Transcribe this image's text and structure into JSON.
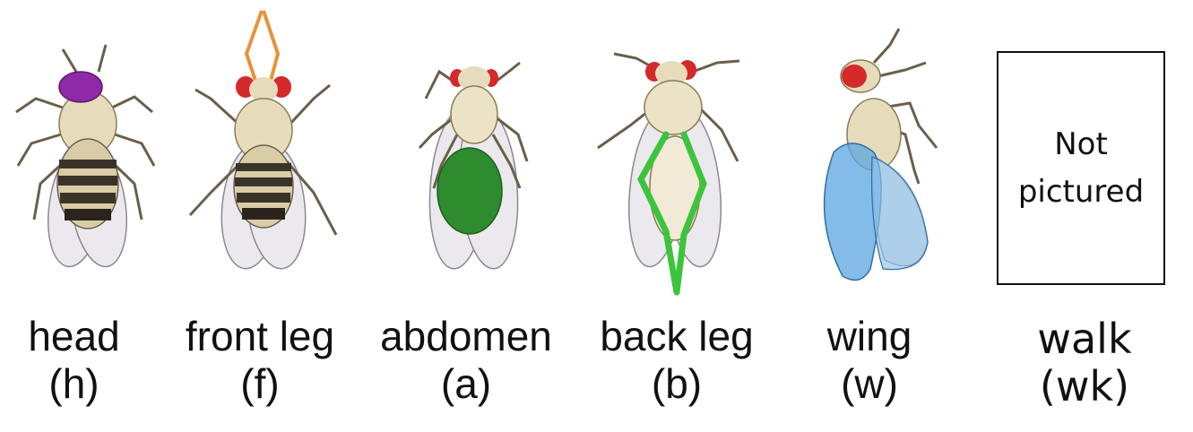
{
  "panels": [
    {
      "name": "head",
      "abbr": "(h)",
      "highlight": "head",
      "highlight_color": "#8e2aa6",
      "view": "dorsal"
    },
    {
      "name": "front leg",
      "abbr": "(f)",
      "highlight": "front-legs",
      "highlight_color": "#e8923a",
      "view": "dorsal"
    },
    {
      "name": "abdomen",
      "abbr": "(a)",
      "highlight": "abdomen",
      "highlight_color": "#2e8b2e",
      "view": "ventral"
    },
    {
      "name": "back leg",
      "abbr": "(b)",
      "highlight": "back-legs",
      "highlight_color": "#3cc43c",
      "view": "ventral"
    },
    {
      "name": "wing",
      "abbr": "(w)",
      "highlight": "wing",
      "highlight_color": "#5aa6e0",
      "view": "side"
    }
  ],
  "walk": {
    "box_text_line1": "Not",
    "box_text_line2": "pictured",
    "name": "walk",
    "abbr": "(wk)"
  },
  "colors": {
    "eye": "#d42a2a",
    "body": "#e8dcc0",
    "stripe": "#3a3328",
    "wing": "#e9e6ea"
  }
}
